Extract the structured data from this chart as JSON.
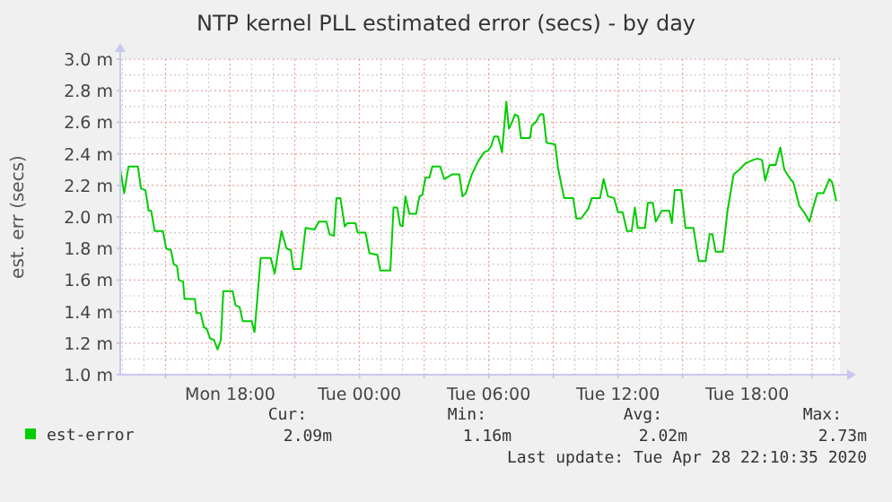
{
  "chart_data": {
    "type": "line",
    "title": "NTP kernel PLL estimated error (secs) - by day",
    "ylabel": "est. err (secs)",
    "xlim": [
      "2020-04-27T12:54",
      "2020-04-28T22:18"
    ],
    "xticks": [
      {
        "value": "2020-04-27T15:00",
        "label": null
      },
      {
        "value": "2020-04-27T18:00",
        "label": "Mon 18:00"
      },
      {
        "value": "2020-04-27T21:00",
        "label": null
      },
      {
        "value": "2020-04-28T00:00",
        "label": "Tue 00:00"
      },
      {
        "value": "2020-04-28T03:00",
        "label": null
      },
      {
        "value": "2020-04-28T06:00",
        "label": "Tue 06:00"
      },
      {
        "value": "2020-04-28T09:00",
        "label": null
      },
      {
        "value": "2020-04-28T12:00",
        "label": "Tue 12:00"
      },
      {
        "value": "2020-04-28T15:00",
        "label": null
      },
      {
        "value": "2020-04-28T18:00",
        "label": "Tue 18:00"
      },
      {
        "value": "2020-04-28T21:00",
        "label": null
      }
    ],
    "ylim": [
      1.0,
      3.0
    ],
    "yticks": [
      {
        "value": 1.0,
        "label": "1.0 m"
      },
      {
        "value": 1.2,
        "label": "1.2 m"
      },
      {
        "value": 1.4,
        "label": "1.4 m"
      },
      {
        "value": 1.6,
        "label": "1.6 m"
      },
      {
        "value": 1.8,
        "label": "1.8 m"
      },
      {
        "value": 2.0,
        "label": "2.0 m"
      },
      {
        "value": 2.2,
        "label": "2.2 m"
      },
      {
        "value": 2.4,
        "label": "2.4 m"
      },
      {
        "value": 2.6,
        "label": "2.6 m"
      },
      {
        "value": 2.8,
        "label": "2.8 m"
      },
      {
        "value": 3.0,
        "label": "3.0 m"
      }
    ],
    "grid": true,
    "legend": "bottom",
    "line_style": "solid",
    "annotations": [
      "Cur:",
      "Min:",
      "Avg:",
      "Max:",
      "2.09m",
      "1.16m",
      "2.02m",
      "2.73m",
      "Last update: Tue Apr 28 22:10:35 2020"
    ],
    "series": [
      {
        "name": "est-error",
        "color": "#00cc00",
        "x": [
          "2020-04-27T12:54",
          "2020-04-27T13:05",
          "2020-04-27T13:17",
          "2020-04-27T13:43",
          "2020-04-27T13:52",
          "2020-04-27T14:04",
          "2020-04-27T14:13",
          "2020-04-27T14:20",
          "2020-04-27T14:30",
          "2020-04-27T14:53",
          "2020-04-27T15:02",
          "2020-04-27T15:15",
          "2020-04-27T15:23",
          "2020-04-27T15:32",
          "2020-04-27T15:37",
          "2020-04-27T15:49",
          "2020-04-27T15:53",
          "2020-04-27T16:22",
          "2020-04-27T16:26",
          "2020-04-27T16:38",
          "2020-04-27T16:47",
          "2020-04-27T16:55",
          "2020-04-27T17:04",
          "2020-04-27T17:15",
          "2020-04-27T17:25",
          "2020-04-27T17:34",
          "2020-04-27T17:41",
          "2020-04-27T18:07",
          "2020-04-27T18:15",
          "2020-04-27T18:26",
          "2020-04-27T18:35",
          "2020-04-27T19:00",
          "2020-04-27T19:08",
          "2020-04-27T19:25",
          "2020-04-27T19:53",
          "2020-04-27T20:04",
          "2020-04-27T20:23",
          "2020-04-27T20:37",
          "2020-04-27T20:49",
          "2020-04-27T20:56",
          "2020-04-27T21:17",
          "2020-04-27T21:30",
          "2020-04-27T21:55",
          "2020-04-27T22:07",
          "2020-04-27T22:28",
          "2020-04-27T22:37",
          "2020-04-27T22:49",
          "2020-04-27T22:56",
          "2020-04-27T23:07",
          "2020-04-27T23:19",
          "2020-04-27T23:26",
          "2020-04-27T23:49",
          "2020-04-27T23:55",
          "2020-04-28T00:17",
          "2020-04-28T00:28",
          "2020-04-28T00:50",
          "2020-04-28T00:58",
          "2020-04-28T01:26",
          "2020-04-28T01:35",
          "2020-04-28T01:45",
          "2020-04-28T01:53",
          "2020-04-28T02:00",
          "2020-04-28T02:08",
          "2020-04-28T02:19",
          "2020-04-28T02:38",
          "2020-04-28T02:47",
          "2020-04-28T02:55",
          "2020-04-28T03:04",
          "2020-04-28T03:15",
          "2020-04-28T03:23",
          "2020-04-28T03:45",
          "2020-04-28T03:56",
          "2020-04-28T04:19",
          "2020-04-28T04:38",
          "2020-04-28T04:47",
          "2020-04-28T04:56",
          "2020-04-28T05:13",
          "2020-04-28T05:30",
          "2020-04-28T05:47",
          "2020-04-28T05:58",
          "2020-04-28T06:07",
          "2020-04-28T06:15",
          "2020-04-28T06:26",
          "2020-04-28T06:37",
          "2020-04-28T06:49",
          "2020-04-28T06:56",
          "2020-04-28T07:05",
          "2020-04-28T07:13",
          "2020-04-28T07:22",
          "2020-04-28T07:30",
          "2020-04-28T07:55",
          "2020-04-28T08:00",
          "2020-04-28T08:11",
          "2020-04-28T08:23",
          "2020-04-28T08:32",
          "2020-04-28T08:41",
          "2020-04-28T09:05",
          "2020-04-28T09:13",
          "2020-04-28T09:30",
          "2020-04-28T09:55",
          "2020-04-28T10:04",
          "2020-04-28T10:17",
          "2020-04-28T10:37",
          "2020-04-28T10:47",
          "2020-04-28T11:10",
          "2020-04-28T11:20",
          "2020-04-28T11:32",
          "2020-04-28T11:49",
          "2020-04-28T12:00",
          "2020-04-28T12:13",
          "2020-04-28T12:25",
          "2020-04-28T12:38",
          "2020-04-28T12:47",
          "2020-04-28T12:55",
          "2020-04-28T13:15",
          "2020-04-28T13:23",
          "2020-04-28T13:37",
          "2020-04-28T13:45",
          "2020-04-28T14:02",
          "2020-04-28T14:23",
          "2020-04-28T14:30",
          "2020-04-28T14:38",
          "2020-04-28T14:56",
          "2020-04-28T15:08",
          "2020-04-28T15:30",
          "2020-04-28T15:45",
          "2020-04-28T16:04",
          "2020-04-28T16:15",
          "2020-04-28T16:23",
          "2020-04-28T16:32",
          "2020-04-28T16:52",
          "2020-04-28T17:05",
          "2020-04-28T17:22",
          "2020-04-28T17:38",
          "2020-04-28T17:55",
          "2020-04-28T18:15",
          "2020-04-28T18:28",
          "2020-04-28T18:41",
          "2020-04-28T18:50",
          "2020-04-28T19:02",
          "2020-04-28T19:19",
          "2020-04-28T19:32",
          "2020-04-28T19:43",
          "2020-04-28T20:00",
          "2020-04-28T20:08",
          "2020-04-28T20:25",
          "2020-04-28T20:38",
          "2020-04-28T20:53",
          "2020-04-28T21:02",
          "2020-04-28T21:15",
          "2020-04-28T21:32",
          "2020-04-28T21:49",
          "2020-04-28T21:56",
          "2020-04-28T22:08"
        ],
        "values": [
          2.3,
          2.15,
          2.32,
          2.32,
          2.18,
          2.17,
          2.04,
          2.04,
          1.91,
          1.91,
          1.8,
          1.79,
          1.7,
          1.69,
          1.6,
          1.59,
          1.48,
          1.48,
          1.39,
          1.39,
          1.3,
          1.29,
          1.23,
          1.22,
          1.16,
          1.22,
          1.53,
          1.53,
          1.44,
          1.43,
          1.34,
          1.34,
          1.27,
          1.74,
          1.74,
          1.64,
          1.91,
          1.8,
          1.79,
          1.67,
          1.67,
          1.93,
          1.92,
          1.97,
          1.97,
          1.89,
          1.88,
          2.12,
          2.12,
          1.94,
          1.96,
          1.96,
          1.9,
          1.9,
          1.77,
          1.76,
          1.66,
          1.66,
          2.06,
          2.06,
          1.95,
          1.94,
          2.13,
          2.02,
          2.02,
          2.13,
          2.14,
          2.25,
          2.25,
          2.32,
          2.32,
          2.24,
          2.27,
          2.27,
          2.13,
          2.15,
          2.27,
          2.35,
          2.41,
          2.42,
          2.45,
          2.51,
          2.51,
          2.41,
          2.73,
          2.56,
          2.6,
          2.65,
          2.64,
          2.5,
          2.5,
          2.58,
          2.6,
          2.65,
          2.65,
          2.47,
          2.46,
          2.31,
          2.12,
          2.12,
          1.99,
          1.99,
          2.05,
          2.12,
          2.12,
          2.24,
          2.13,
          2.12,
          2.03,
          2.03,
          1.91,
          1.91,
          2.06,
          1.93,
          1.93,
          2.09,
          2.09,
          1.97,
          2.04,
          2.04,
          1.96,
          2.17,
          2.17,
          1.93,
          1.93,
          1.72,
          1.72,
          1.89,
          1.89,
          1.78,
          1.78,
          2.04,
          2.27,
          2.3,
          2.34,
          2.36,
          2.37,
          2.36,
          2.23,
          2.33,
          2.33,
          2.44,
          2.3,
          2.24,
          2.22,
          2.07,
          2.03,
          1.97,
          2.05,
          2.15,
          2.15,
          2.24,
          2.22,
          2.1
        ]
      }
    ]
  }
}
